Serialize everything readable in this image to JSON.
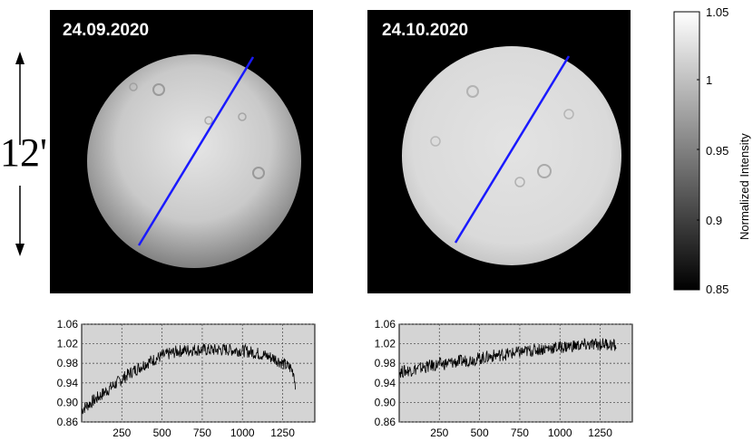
{
  "scale_label": "12'",
  "panels": [
    {
      "date": "24.09.2020"
    },
    {
      "date": "24.10.2020"
    }
  ],
  "colors": {
    "profile_line": "#1a1aff",
    "plot_bg": "#d4d4d4",
    "trace": "#000000"
  },
  "colorbar": {
    "label": "Normalized Intensity",
    "ticks": [
      "1.05",
      "1",
      "0.95",
      "0.9",
      "0.85"
    ],
    "range": [
      0.85,
      1.05
    ]
  },
  "chart_data": [
    {
      "type": "line",
      "title": "",
      "xlabel": "",
      "ylabel": "",
      "xlim": [
        0,
        1450
      ],
      "ylim": [
        0.86,
        1.06
      ],
      "xticks": [
        "250",
        "500",
        "750",
        "1000",
        "1250"
      ],
      "yticks": [
        "1.06",
        "1.02",
        "0.98",
        "0.94",
        "0.90",
        "0.86"
      ],
      "grid": true,
      "series": [
        {
          "x": [
            0,
            100,
            200,
            300,
            400,
            500,
            600,
            700,
            800,
            900,
            1000,
            1100,
            1200,
            1250,
            1300,
            1320,
            1330
          ],
          "y": [
            0.885,
            0.91,
            0.935,
            0.96,
            0.98,
            0.995,
            1.005,
            1.008,
            1.007,
            1.008,
            1.006,
            1.0,
            0.99,
            0.98,
            0.97,
            0.96,
            0.93
          ]
        }
      ]
    },
    {
      "type": "line",
      "title": "",
      "xlabel": "",
      "ylabel": "",
      "xlim": [
        0,
        1450
      ],
      "ylim": [
        0.86,
        1.06
      ],
      "xticks": [
        "250",
        "500",
        "750",
        "1000",
        "1250"
      ],
      "yticks": [
        "1.06",
        "1.02",
        "0.98",
        "0.94",
        "0.90",
        "0.86"
      ],
      "grid": true,
      "series": [
        {
          "x": [
            0,
            100,
            200,
            300,
            400,
            500,
            600,
            700,
            800,
            900,
            1000,
            1100,
            1200,
            1300,
            1350
          ],
          "y": [
            0.962,
            0.968,
            0.975,
            0.98,
            0.985,
            0.99,
            0.996,
            1.0,
            1.005,
            1.01,
            1.013,
            1.016,
            1.018,
            1.02,
            1.015
          ]
        }
      ]
    }
  ]
}
